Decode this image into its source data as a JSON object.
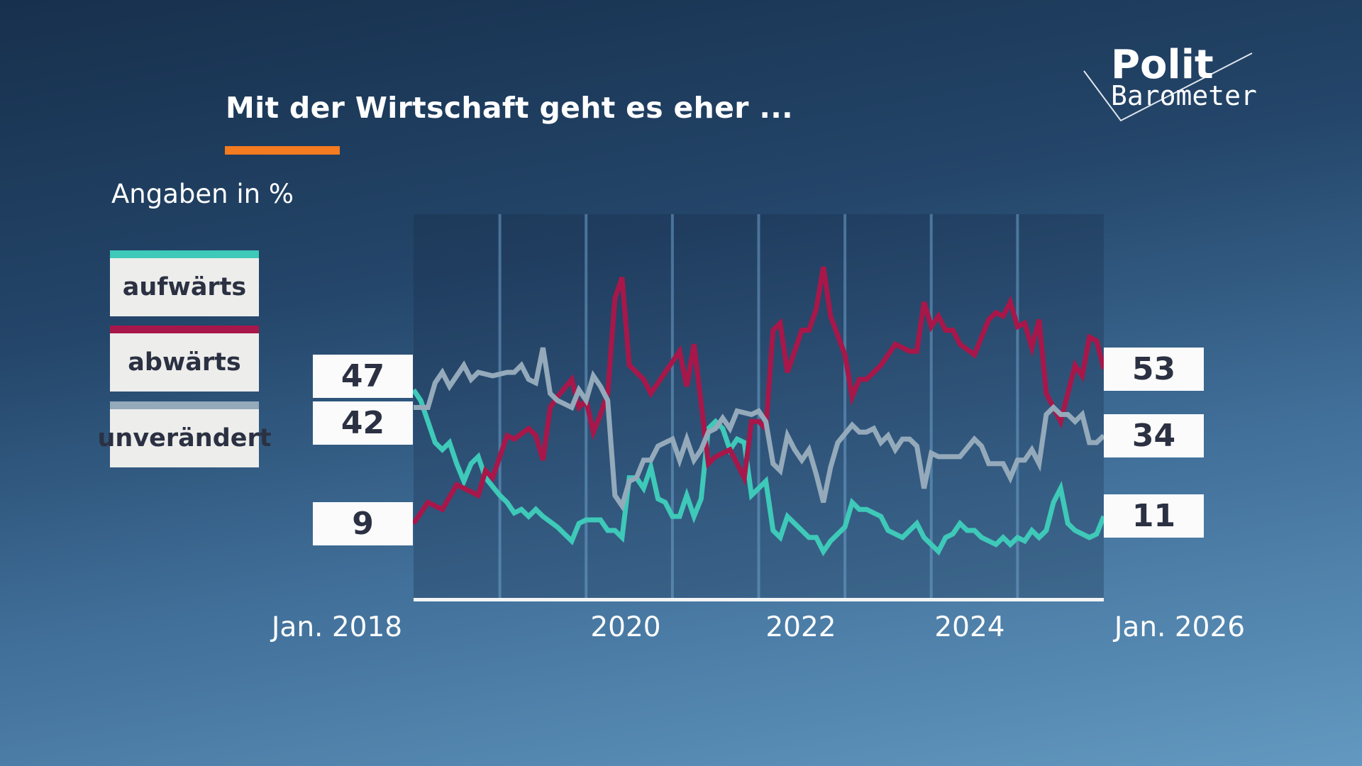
{
  "title": "Mit der Wirtschaft geht es eher ...",
  "subtitle": "Angaben in %",
  "logo": {
    "line1": "Polit",
    "line2": "Barometer"
  },
  "colors": {
    "accent": "#f47b20",
    "aufwaerts": "#3ec9b9",
    "abwaerts": "#a8174a",
    "unveraendert": "#94aabb"
  },
  "legend": [
    {
      "label": "aufwärts",
      "color": "#3ec9b9"
    },
    {
      "label": "abwärts",
      "color": "#a8174a"
    },
    {
      "label": "unverändert",
      "color": "#94aabb"
    }
  ],
  "start_values": {
    "aufwaerts": "47",
    "unveraendert": "42",
    "abwaerts": "9"
  },
  "end_values": {
    "abwaerts": "53",
    "unveraendert": "34",
    "aufwaerts": "11"
  },
  "chart_data": {
    "type": "line",
    "title": "Mit der Wirtschaft geht es eher ...",
    "ylabel": "Angaben in %",
    "xlim": [
      "2018-01",
      "2026-01"
    ],
    "ylim": [
      -13,
      97
    ],
    "grid": "vertical yearly",
    "legend": "left",
    "x_tick_labels": [
      "Jan. 2018",
      "2020",
      "2022",
      "2024",
      "Jan. 2026"
    ],
    "series": [
      {
        "name": "aufwärts",
        "color": "#3ec9b9",
        "points": [
          [
            "2018-01",
            47
          ],
          [
            "2018-02",
            44
          ],
          [
            "2018-04",
            32
          ],
          [
            "2018-05",
            30
          ],
          [
            "2018-06",
            32
          ],
          [
            "2018-07",
            26
          ],
          [
            "2018-08",
            21
          ],
          [
            "2018-09",
            26
          ],
          [
            "2018-10",
            28
          ],
          [
            "2018-11",
            22
          ],
          [
            "2019-01",
            17
          ],
          [
            "2019-02",
            15
          ],
          [
            "2019-03",
            12
          ],
          [
            "2019-04",
            13
          ],
          [
            "2019-05",
            11
          ],
          [
            "2019-06",
            13
          ],
          [
            "2019-07",
            11
          ],
          [
            "2019-09",
            8
          ],
          [
            "2019-11",
            4
          ],
          [
            "2019-12",
            9
          ],
          [
            "2020-01",
            10
          ],
          [
            "2020-03",
            10
          ],
          [
            "2020-04",
            7
          ],
          [
            "2020-05",
            7
          ],
          [
            "2020-06",
            5
          ],
          [
            "2020-07",
            22
          ],
          [
            "2020-08",
            22
          ],
          [
            "2020-09",
            19
          ],
          [
            "2020-10",
            25
          ],
          [
            "2020-11",
            16
          ],
          [
            "2020-12",
            15
          ],
          [
            "2021-01",
            11
          ],
          [
            "2021-02",
            11
          ],
          [
            "2021-03",
            17
          ],
          [
            "2021-04",
            11
          ],
          [
            "2021-05",
            16
          ],
          [
            "2021-06",
            36
          ],
          [
            "2021-07",
            38
          ],
          [
            "2021-08",
            36
          ],
          [
            "2021-09",
            30
          ],
          [
            "2021-10",
            33
          ],
          [
            "2021-11",
            32
          ],
          [
            "2021-12",
            17
          ],
          [
            "2022-02",
            21
          ],
          [
            "2022-03",
            7
          ],
          [
            "2022-04",
            5
          ],
          [
            "2022-05",
            11
          ],
          [
            "2022-06",
            9
          ],
          [
            "2022-08",
            5
          ],
          [
            "2022-09",
            5
          ],
          [
            "2022-10",
            1
          ],
          [
            "2022-11",
            4
          ],
          [
            "2023-01",
            8
          ],
          [
            "2023-02",
            15
          ],
          [
            "2023-03",
            13
          ],
          [
            "2023-04",
            13
          ],
          [
            "2023-06",
            11
          ],
          [
            "2023-07",
            7
          ],
          [
            "2023-09",
            5
          ],
          [
            "2023-11",
            9
          ],
          [
            "2023-12",
            5
          ],
          [
            "2024-01",
            3
          ],
          [
            "2024-02",
            1
          ],
          [
            "2024-03",
            5
          ],
          [
            "2024-04",
            6
          ],
          [
            "2024-05",
            9
          ],
          [
            "2024-06",
            7
          ],
          [
            "2024-07",
            7
          ],
          [
            "2024-08",
            5
          ],
          [
            "2024-10",
            3
          ],
          [
            "2024-11",
            5
          ],
          [
            "2024-12",
            3
          ],
          [
            "2025-01",
            5
          ],
          [
            "2025-02",
            4
          ],
          [
            "2025-03",
            7
          ],
          [
            "2025-04",
            5
          ],
          [
            "2025-05",
            7
          ],
          [
            "2025-06",
            15
          ],
          [
            "2025-07",
            19
          ],
          [
            "2025-08",
            9
          ],
          [
            "2025-09",
            7
          ],
          [
            "2025-11",
            5
          ],
          [
            "2025-12",
            6
          ],
          [
            "2026-01",
            11
          ]
        ]
      },
      {
        "name": "abwärts",
        "color": "#a8174a",
        "points": [
          [
            "2018-01",
            9
          ],
          [
            "2018-03",
            15
          ],
          [
            "2018-05",
            13
          ],
          [
            "2018-07",
            20
          ],
          [
            "2018-10",
            17
          ],
          [
            "2018-11",
            24
          ],
          [
            "2018-12",
            22
          ],
          [
            "2019-01",
            28
          ],
          [
            "2019-02",
            34
          ],
          [
            "2019-03",
            33
          ],
          [
            "2019-05",
            36
          ],
          [
            "2019-06",
            34
          ],
          [
            "2019-07",
            27
          ],
          [
            "2019-08",
            42
          ],
          [
            "2019-09",
            45
          ],
          [
            "2019-11",
            50
          ],
          [
            "2019-12",
            42
          ],
          [
            "2020-01",
            44
          ],
          [
            "2020-02",
            35
          ],
          [
            "2020-03",
            40
          ],
          [
            "2020-04",
            46
          ],
          [
            "2020-05",
            73
          ],
          [
            "2020-06",
            79
          ],
          [
            "2020-07",
            54
          ],
          [
            "2020-09",
            50
          ],
          [
            "2020-10",
            46
          ],
          [
            "2021-02",
            58
          ],
          [
            "2021-03",
            48
          ],
          [
            "2021-04",
            60
          ],
          [
            "2021-06",
            26
          ],
          [
            "2021-07",
            28
          ],
          [
            "2021-09",
            30
          ],
          [
            "2021-11",
            22
          ],
          [
            "2021-12",
            38
          ],
          [
            "2022-01",
            38
          ],
          [
            "2022-02",
            36
          ],
          [
            "2022-03",
            64
          ],
          [
            "2022-04",
            66
          ],
          [
            "2022-05",
            52
          ],
          [
            "2022-07",
            64
          ],
          [
            "2022-08",
            64
          ],
          [
            "2022-09",
            70
          ],
          [
            "2022-10",
            82
          ],
          [
            "2022-11",
            68
          ],
          [
            "2023-01",
            57
          ],
          [
            "2023-02",
            45
          ],
          [
            "2023-03",
            50
          ],
          [
            "2023-04",
            50
          ],
          [
            "2023-06",
            54
          ],
          [
            "2023-08",
            60
          ],
          [
            "2023-10",
            58
          ],
          [
            "2023-11",
            58
          ],
          [
            "2023-12",
            72
          ],
          [
            "2024-01",
            65
          ],
          [
            "2024-02",
            68
          ],
          [
            "2024-03",
            64
          ],
          [
            "2024-04",
            64
          ],
          [
            "2024-05",
            60
          ],
          [
            "2024-07",
            57
          ],
          [
            "2024-09",
            67
          ],
          [
            "2024-10",
            69
          ],
          [
            "2024-11",
            68
          ],
          [
            "2024-12",
            72
          ],
          [
            "2025-01",
            65
          ],
          [
            "2025-02",
            66
          ],
          [
            "2025-03",
            59
          ],
          [
            "2025-04",
            67
          ],
          [
            "2025-05",
            46
          ],
          [
            "2025-07",
            38
          ],
          [
            "2025-08",
            46
          ],
          [
            "2025-09",
            54
          ],
          [
            "2025-10",
            51
          ],
          [
            "2025-11",
            62
          ],
          [
            "2025-12",
            61
          ],
          [
            "2026-01",
            53
          ]
        ]
      },
      {
        "name": "unverändert",
        "color": "#94aabb",
        "points": [
          [
            "2018-01",
            42
          ],
          [
            "2018-03",
            42
          ],
          [
            "2018-04",
            49
          ],
          [
            "2018-05",
            52
          ],
          [
            "2018-06",
            48
          ],
          [
            "2018-08",
            54
          ],
          [
            "2018-09",
            50
          ],
          [
            "2018-10",
            52
          ],
          [
            "2018-12",
            51
          ],
          [
            "2019-02",
            52
          ],
          [
            "2019-03",
            52
          ],
          [
            "2019-04",
            54
          ],
          [
            "2019-05",
            50
          ],
          [
            "2019-06",
            49
          ],
          [
            "2019-07",
            59
          ],
          [
            "2019-08",
            46
          ],
          [
            "2019-09",
            44
          ],
          [
            "2019-10",
            43
          ],
          [
            "2019-11",
            42
          ],
          [
            "2019-12",
            47
          ],
          [
            "2020-01",
            44
          ],
          [
            "2020-02",
            51
          ],
          [
            "2020-03",
            48
          ],
          [
            "2020-04",
            44
          ],
          [
            "2020-05",
            17
          ],
          [
            "2020-06",
            14
          ],
          [
            "2020-07",
            21
          ],
          [
            "2020-08",
            22
          ],
          [
            "2020-09",
            27
          ],
          [
            "2020-10",
            27
          ],
          [
            "2020-11",
            31
          ],
          [
            "2020-12",
            32
          ],
          [
            "2021-01",
            33
          ],
          [
            "2021-02",
            27
          ],
          [
            "2021-03",
            33
          ],
          [
            "2021-04",
            27
          ],
          [
            "2021-05",
            30
          ],
          [
            "2021-06",
            35
          ],
          [
            "2021-07",
            36
          ],
          [
            "2021-08",
            39
          ],
          [
            "2021-09",
            36
          ],
          [
            "2021-10",
            41
          ],
          [
            "2021-12",
            40
          ],
          [
            "2022-01",
            41
          ],
          [
            "2022-02",
            38
          ],
          [
            "2022-03",
            26
          ],
          [
            "2022-04",
            24
          ],
          [
            "2022-05",
            34
          ],
          [
            "2022-06",
            30
          ],
          [
            "2022-07",
            27
          ],
          [
            "2022-08",
            30
          ],
          [
            "2022-09",
            23
          ],
          [
            "2022-10",
            15
          ],
          [
            "2022-11",
            25
          ],
          [
            "2022-12",
            32
          ],
          [
            "2023-02",
            37
          ],
          [
            "2023-03",
            35
          ],
          [
            "2023-04",
            35
          ],
          [
            "2023-05",
            36
          ],
          [
            "2023-06",
            32
          ],
          [
            "2023-07",
            34
          ],
          [
            "2023-08",
            30
          ],
          [
            "2023-09",
            33
          ],
          [
            "2023-10",
            33
          ],
          [
            "2023-11",
            31
          ],
          [
            "2023-12",
            19
          ],
          [
            "2024-01",
            29
          ],
          [
            "2024-02",
            28
          ],
          [
            "2024-05",
            28
          ],
          [
            "2024-07",
            33
          ],
          [
            "2024-08",
            31
          ],
          [
            "2024-09",
            26
          ],
          [
            "2024-11",
            26
          ],
          [
            "2024-12",
            22
          ],
          [
            "2025-01",
            27
          ],
          [
            "2025-02",
            27
          ],
          [
            "2025-03",
            30
          ],
          [
            "2025-04",
            26
          ],
          [
            "2025-05",
            40
          ],
          [
            "2025-06",
            42
          ],
          [
            "2025-07",
            40
          ],
          [
            "2025-08",
            40
          ],
          [
            "2025-09",
            38
          ],
          [
            "2025-10",
            40
          ],
          [
            "2025-11",
            32
          ],
          [
            "2025-12",
            32
          ],
          [
            "2026-01",
            34
          ]
        ]
      }
    ]
  }
}
